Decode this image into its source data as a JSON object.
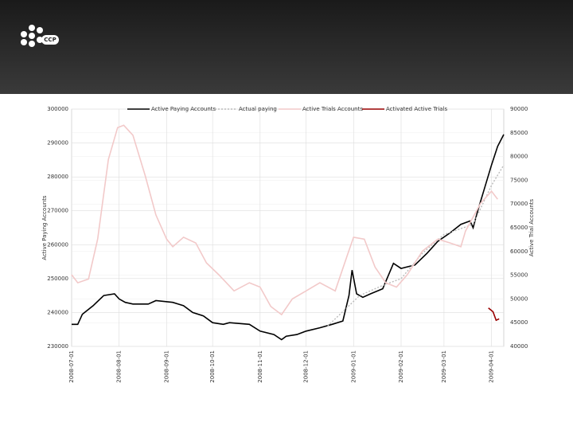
{
  "logo_text": "CCP",
  "chart_data": {
    "type": "line",
    "y_label": "Active Paying Accounts",
    "y2_label": "Active Trial Accounts",
    "xlim": [
      "2008-07-01",
      "2009-04-09"
    ],
    "xticks": [
      "2008-07-01",
      "2008-08-01",
      "2008-09-01",
      "2008-10-01",
      "2008-11-01",
      "2008-12-01",
      "2009-01-01",
      "2009-02-01",
      "2009-03-01",
      "2009-04-01"
    ],
    "ylim": [
      230000,
      300000
    ],
    "yticks": [
      230000,
      240000,
      250000,
      260000,
      270000,
      280000,
      290000,
      300000
    ],
    "y2lim": [
      40000,
      90000
    ],
    "y2ticks": [
      40000,
      45000,
      50000,
      55000,
      60000,
      65000,
      70000,
      75000,
      80000,
      85000,
      90000
    ],
    "grid": true,
    "series": [
      {
        "name": "Active Paying Accounts",
        "color": "#000000",
        "line_style": "solid",
        "x": [
          "2008-07-01",
          "2008-07-05",
          "2008-07-08",
          "2008-07-15",
          "2008-07-22",
          "2008-07-29",
          "2008-08-01",
          "2008-08-05",
          "2008-08-10",
          "2008-08-20",
          "2008-08-25",
          "2008-09-05",
          "2008-09-12",
          "2008-09-18",
          "2008-09-25",
          "2008-10-01",
          "2008-10-08",
          "2008-10-12",
          "2008-10-25",
          "2008-11-01",
          "2008-11-10",
          "2008-11-15",
          "2008-11-18",
          "2008-11-25",
          "2008-12-01",
          "2008-12-10",
          "2008-12-18",
          "2008-12-25",
          "2008-12-29",
          "2008-12-31",
          "2009-01-03",
          "2009-01-07",
          "2009-01-12",
          "2009-01-20",
          "2009-01-27",
          "2009-02-01",
          "2009-02-10",
          "2009-02-18",
          "2009-02-25",
          "2009-03-05",
          "2009-03-12",
          "2009-03-18",
          "2009-03-20",
          "2009-03-23",
          "2009-03-28",
          "2009-04-01",
          "2009-04-05",
          "2009-04-09"
        ],
        "values": [
          236500,
          236500,
          239500,
          242000,
          245000,
          245500,
          244000,
          243000,
          242500,
          242500,
          243500,
          243000,
          242000,
          240000,
          239000,
          237000,
          236500,
          237000,
          236500,
          234500,
          233500,
          232000,
          233000,
          233500,
          234500,
          235500,
          236500,
          237500,
          245000,
          252500,
          245500,
          244500,
          245500,
          247000,
          254500,
          253000,
          254000,
          257500,
          261000,
          263500,
          266000,
          267000,
          265000,
          270000,
          277500,
          283500,
          289000,
          292500
        ]
      },
      {
        "name": "Actual paying",
        "color": "#bbbbbb",
        "line_style": "dotted",
        "x": [
          "2008-12-15",
          "2009-01-05",
          "2009-01-20",
          "2009-02-01",
          "2009-02-15",
          "2009-03-01",
          "2009-03-20",
          "2009-04-01",
          "2009-04-09"
        ],
        "values": [
          236000,
          245000,
          248000,
          250000,
          257500,
          263000,
          266000,
          277500,
          283500
        ]
      },
      {
        "name": "Active Trials Accounts",
        "color": "#f2c9c9",
        "line_style": "solid",
        "axis": "y2",
        "x": [
          "2008-07-01",
          "2008-07-05",
          "2008-07-12",
          "2008-07-18",
          "2008-07-25",
          "2008-07-31",
          "2008-08-04",
          "2008-08-10",
          "2008-08-18",
          "2008-08-25",
          "2008-09-01",
          "2008-09-05",
          "2008-09-12",
          "2008-09-20",
          "2008-09-27",
          "2008-10-05",
          "2008-10-15",
          "2008-10-25",
          "2008-11-01",
          "2008-11-08",
          "2008-11-15",
          "2008-11-22",
          "2008-12-01",
          "2008-12-10",
          "2008-12-20",
          "2008-12-28",
          "2009-01-01",
          "2009-01-08",
          "2009-01-15",
          "2009-01-22",
          "2009-01-29",
          "2009-02-05",
          "2009-02-15",
          "2009-02-25",
          "2009-03-05",
          "2009-03-12",
          "2009-03-15",
          "2009-03-25",
          "2009-04-01",
          "2009-04-05"
        ],
        "values": [
          55100,
          53400,
          54200,
          62600,
          79400,
          86100,
          86600,
          84500,
          76000,
          67700,
          62600,
          61000,
          63000,
          61800,
          57600,
          55100,
          51700,
          53400,
          52500,
          48400,
          46700,
          50000,
          51700,
          53400,
          51700,
          59300,
          63000,
          62600,
          56700,
          53400,
          52500,
          55100,
          60100,
          62600,
          61800,
          61000,
          64300,
          70200,
          72700,
          71000
        ]
      },
      {
        "name": "Activated Active Trials",
        "color": "#990000",
        "line_style": "solid",
        "axis": "y2",
        "x": [
          "2009-03-30",
          "2009-04-02",
          "2009-04-04",
          "2009-04-06"
        ],
        "values": [
          48100,
          47300,
          45500,
          45800
        ]
      }
    ]
  }
}
